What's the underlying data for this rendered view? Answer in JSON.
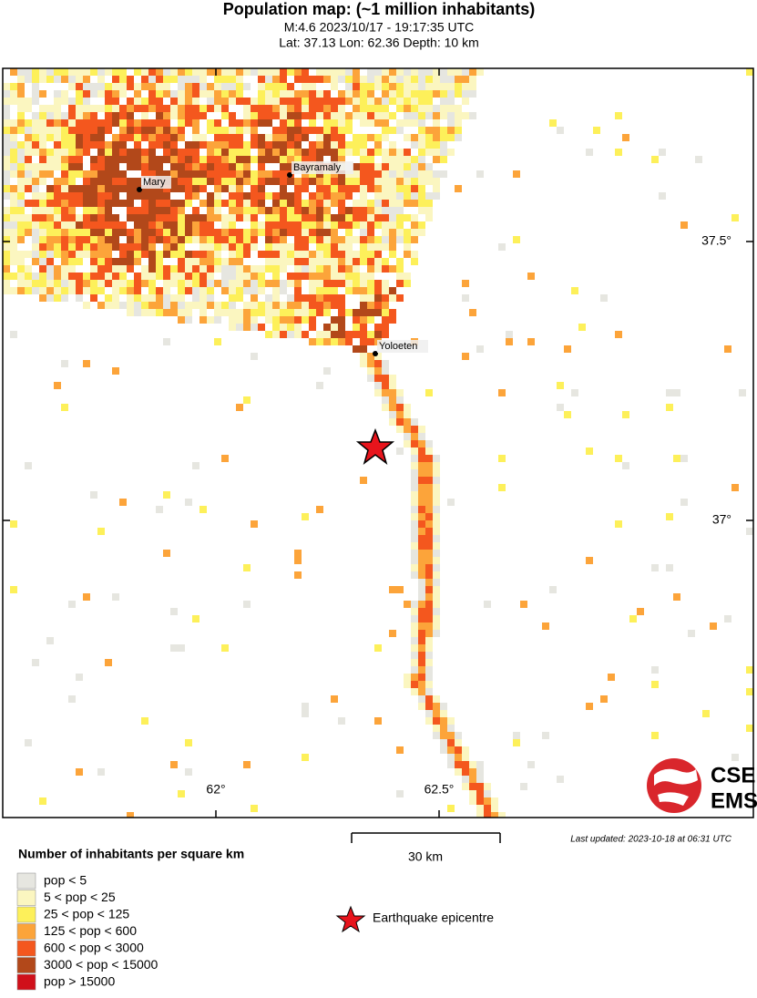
{
  "title": "Population map: (~1 million inhabitants)",
  "subtitle": [
    "M:4.6 2023/10/17 - 19:17:35 UTC",
    "Lat: 37.13 Lon: 62.36 Depth: 10 km"
  ],
  "map": {
    "lon_ticks": [
      "62°",
      "62.5°"
    ],
    "lat_ticks": [
      "37.5°",
      "37°"
    ],
    "cities": [
      "Mary",
      "Bayramaly",
      "Yoloeten"
    ],
    "scale_label": "30 km",
    "last_updated": "Last updated: 2023-10-18 at 06:31 UTC",
    "logo": [
      "CSEM",
      "EMSC"
    ]
  },
  "legend": {
    "title": "Number of inhabitants per square km",
    "items": [
      "pop < 5",
      "5 < pop < 25",
      "25 < pop < 125",
      "125 < pop < 600",
      "600 < pop < 3000",
      "3000 < pop < 15000",
      "pop > 15000"
    ],
    "epicentre": "Earthquake epicentre"
  }
}
